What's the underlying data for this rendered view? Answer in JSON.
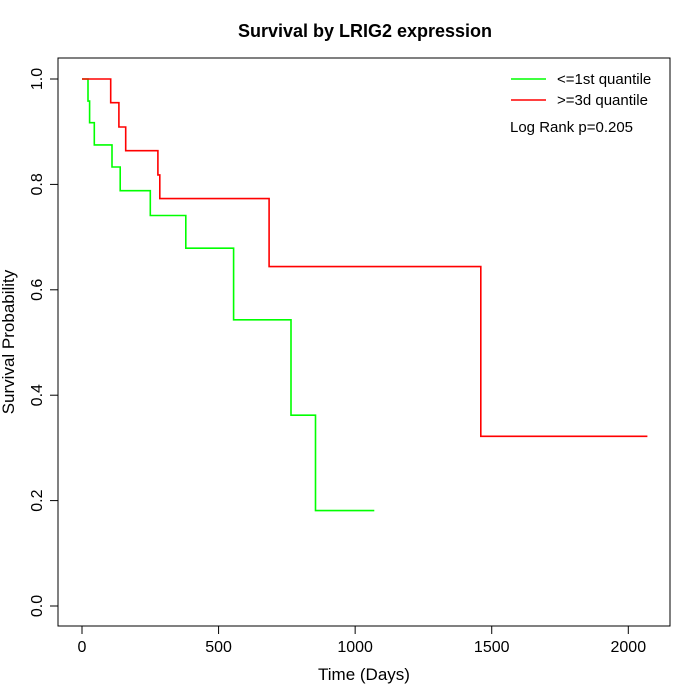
{
  "chart_data": {
    "type": "line",
    "title": "Survival by LRIG2 expression",
    "xlabel": "Time (Days)",
    "ylabel": "Survival Probability",
    "xlim": [
      0,
      2100
    ],
    "ylim": [
      0,
      1.0
    ],
    "x_ticks": [
      0,
      500,
      1000,
      1500,
      2000
    ],
    "x_tick_labels": [
      "0",
      "500",
      "1000",
      "1500",
      "2000"
    ],
    "y_ticks": [
      0.0,
      0.2,
      0.4,
      0.6,
      0.8,
      1.0
    ],
    "y_tick_labels": [
      "0.0",
      "0.2",
      "0.4",
      "0.6",
      "0.8",
      "1.0"
    ],
    "grid": false,
    "legend_position": "top-right",
    "annotation": "Log Rank p=0.205",
    "series": [
      {
        "name": "<=1st quantile",
        "color": "#00ff00",
        "step_points": [
          [
            0,
            1.0
          ],
          [
            22,
            0.958
          ],
          [
            28,
            0.917
          ],
          [
            45,
            0.875
          ],
          [
            110,
            0.833
          ],
          [
            140,
            0.788
          ],
          [
            250,
            0.741
          ],
          [
            380,
            0.679
          ],
          [
            555,
            0.543
          ],
          [
            765,
            0.362
          ],
          [
            855,
            0.181
          ],
          [
            1070,
            0.181
          ]
        ]
      },
      {
        "name": ">=3d quantile",
        "color": "#ff0000",
        "step_points": [
          [
            0,
            1.0
          ],
          [
            105,
            0.955
          ],
          [
            135,
            0.909
          ],
          [
            160,
            0.864
          ],
          [
            278,
            0.818
          ],
          [
            285,
            0.773
          ],
          [
            685,
            0.644
          ],
          [
            1460,
            0.322
          ],
          [
            2070,
            0.322
          ]
        ]
      }
    ]
  }
}
